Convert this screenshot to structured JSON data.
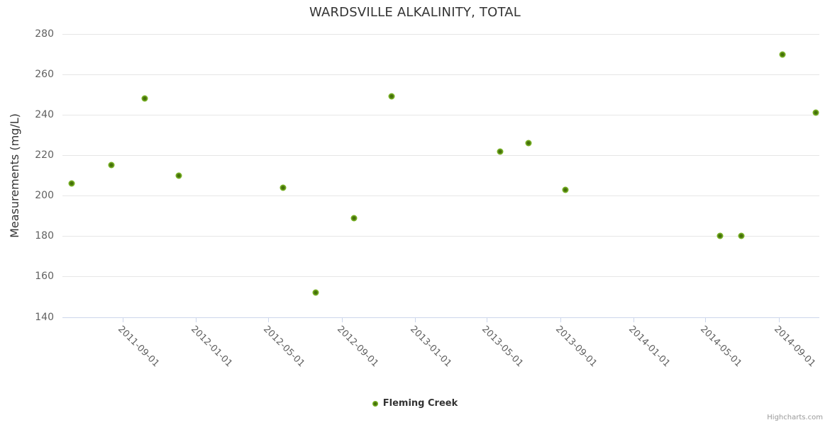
{
  "chart_data": {
    "type": "scatter",
    "title": "WARDSVILLE ALKALINITY, TOTAL",
    "xlabel": "",
    "ylabel": "Measurements (mg/L)",
    "ylim": [
      140,
      280
    ],
    "yticks": [
      140,
      160,
      180,
      200,
      220,
      240,
      260,
      280
    ],
    "xlim": [
      "2011-05-23",
      "2014-11-08"
    ],
    "xticks": [
      "2011-09-01",
      "2012-01-01",
      "2012-05-01",
      "2012-09-01",
      "2013-01-01",
      "2013-05-01",
      "2013-09-01",
      "2014-01-01",
      "2014-05-01",
      "2014-09-01"
    ],
    "grid": "horizontal-only",
    "legend_position": "bottom-center",
    "colors": {
      "grid": "#e6e6e6",
      "axis_line": "#ccd6eb",
      "axis_label": "#606060",
      "title_text": "#333333"
    },
    "series": [
      {
        "name": "Fleming Creek",
        "color": "#76af23",
        "color_dark": "#45700a",
        "points": [
          {
            "date": "2011-06-07",
            "value": 206
          },
          {
            "date": "2011-08-13",
            "value": 215
          },
          {
            "date": "2011-10-08",
            "value": 248
          },
          {
            "date": "2011-12-04",
            "value": 210
          },
          {
            "date": "2012-05-26",
            "value": 204
          },
          {
            "date": "2012-07-19",
            "value": 152
          },
          {
            "date": "2012-09-21",
            "value": 189
          },
          {
            "date": "2012-11-23",
            "value": 249
          },
          {
            "date": "2013-05-24",
            "value": 222
          },
          {
            "date": "2013-07-10",
            "value": 226
          },
          {
            "date": "2013-09-10",
            "value": 203
          },
          {
            "date": "2014-05-26",
            "value": 180
          },
          {
            "date": "2014-07-01",
            "value": 180
          },
          {
            "date": "2014-09-07",
            "value": 270
          },
          {
            "date": "2014-11-02",
            "value": 241
          }
        ]
      }
    ],
    "credits": "Highcharts.com"
  }
}
